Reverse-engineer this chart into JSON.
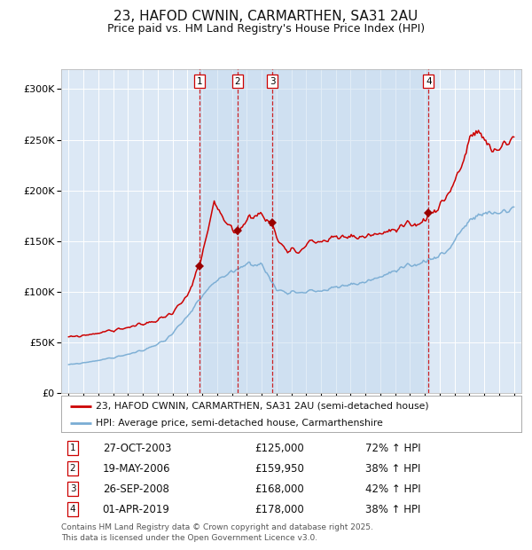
{
  "title": "23, HAFOD CWNIN, CARMARTHEN, SA31 2AU",
  "subtitle": "Price paid vs. HM Land Registry's House Price Index (HPI)",
  "title_fontsize": 11,
  "subtitle_fontsize": 9,
  "background_color": "#ffffff",
  "plot_bg_color": "#dce8f5",
  "grid_color": "#ffffff",
  "red_line_color": "#cc0000",
  "blue_line_color": "#7aadd4",
  "ylim": [
    0,
    320000
  ],
  "yticks": [
    0,
    50000,
    100000,
    150000,
    200000,
    250000,
    300000
  ],
  "ytick_labels": [
    "£0",
    "£50K",
    "£100K",
    "£150K",
    "£200K",
    "£250K",
    "£300K"
  ],
  "legend_red": "23, HAFOD CWNIN, CARMARTHEN, SA31 2AU (semi-detached house)",
  "legend_blue": "HPI: Average price, semi-detached house, Carmarthenshire",
  "transactions": [
    {
      "num": 1,
      "date": "27-OCT-2003",
      "price": 125000,
      "change": "72% ↑ HPI",
      "x_year": 2003.82
    },
    {
      "num": 2,
      "date": "19-MAY-2006",
      "price": 159950,
      "change": "38% ↑ HPI",
      "x_year": 2006.38
    },
    {
      "num": 3,
      "date": "26-SEP-2008",
      "price": 168000,
      "change": "42% ↑ HPI",
      "x_year": 2008.73
    },
    {
      "num": 4,
      "date": "01-APR-2019",
      "price": 178000,
      "change": "38% ↑ HPI",
      "x_year": 2019.25
    }
  ],
  "shade_start": 2003.82,
  "shade_end": 2019.25,
  "footer": "Contains HM Land Registry data © Crown copyright and database right 2025.\nThis data is licensed under the Open Government Licence v3.0.",
  "xmin": 1994.5,
  "xmax": 2025.5
}
